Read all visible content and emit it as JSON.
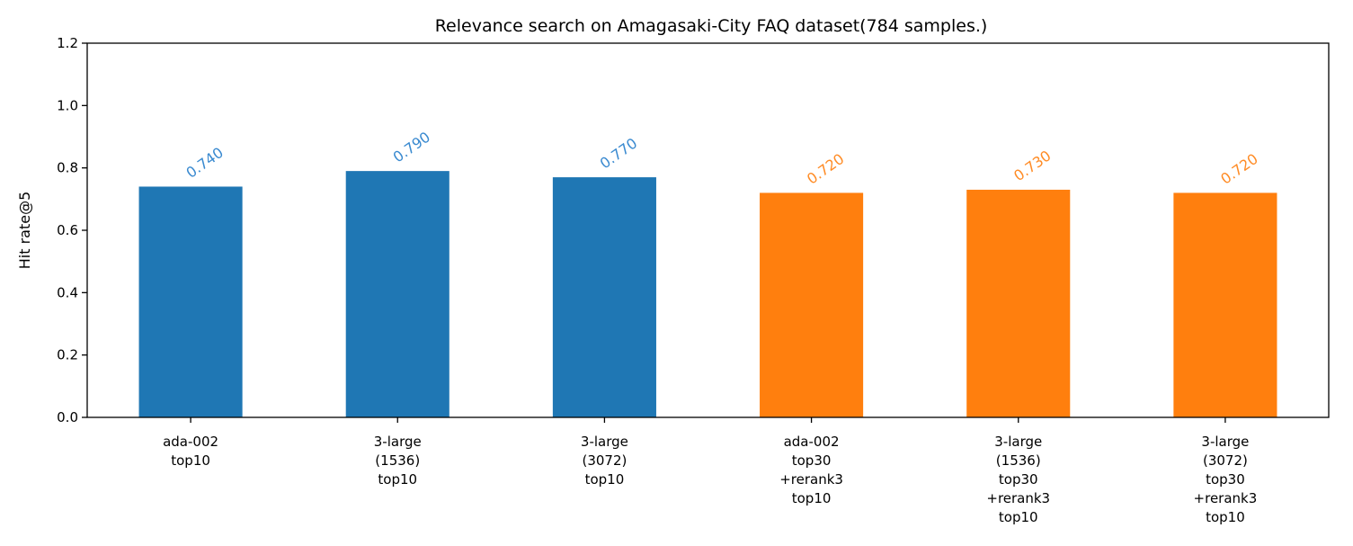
{
  "chart_data": {
    "type": "bar",
    "title": "Relevance search on Amagasaki-City FAQ dataset(784 samples.)",
    "xlabel": "",
    "ylabel": "Hit rate@5",
    "ylim": [
      0,
      1.2
    ],
    "yticks": [
      "0.0",
      "0.2",
      "0.4",
      "0.6",
      "0.8",
      "1.0",
      "1.2"
    ],
    "categories": [
      [
        "ada-002",
        "top10"
      ],
      [
        "3-large",
        "(1536)",
        "top10"
      ],
      [
        "3-large",
        "(3072)",
        "top10"
      ],
      [
        "ada-002",
        "top30",
        "+rerank3",
        "top10"
      ],
      [
        "3-large",
        "(1536)",
        "top30",
        "+rerank3",
        "top10"
      ],
      [
        "3-large",
        "(3072)",
        "top30",
        "+rerank3",
        "top10"
      ]
    ],
    "values": [
      0.74,
      0.79,
      0.77,
      0.72,
      0.73,
      0.72
    ],
    "data_labels": [
      "0.740",
      "0.790",
      "0.770",
      "0.720",
      "0.730",
      "0.720"
    ],
    "colors": [
      "#1f77b4",
      "#1f77b4",
      "#1f77b4",
      "#ff7f0e",
      "#ff7f0e",
      "#ff7f0e"
    ],
    "label_colors": [
      "#3a8ad0",
      "#3a8ad0",
      "#3a8ad0",
      "#ff8c26",
      "#ff8c26",
      "#ff8c26"
    ],
    "grid": false,
    "legend": "none"
  }
}
